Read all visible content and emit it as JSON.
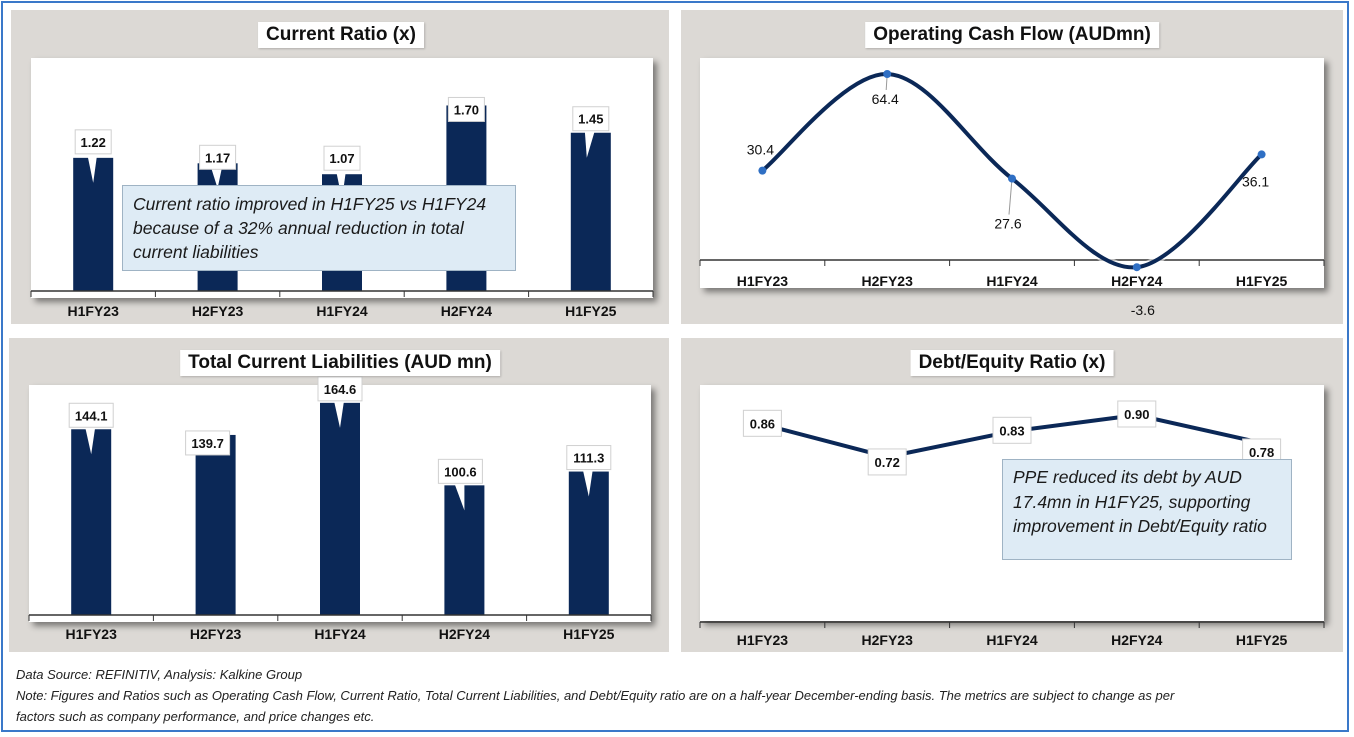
{
  "chart_data": [
    {
      "id": "current_ratio",
      "type": "bar",
      "title": "Current Ratio (x)",
      "categories": [
        "H1FY23",
        "H2FY23",
        "H1FY24",
        "H2FY24",
        "H1FY25"
      ],
      "values": [
        1.22,
        1.17,
        1.07,
        1.7,
        1.45
      ],
      "labels": [
        "1.22",
        "1.17",
        "1.07",
        "1.70",
        "1.45"
      ],
      "ylim": [
        0,
        1.75
      ],
      "xlabel": "",
      "ylabel": "",
      "grid": false,
      "color": "#0b2857",
      "annotation": "Current ratio improved in H1FY25 vs H1FY24 because of a 32% annual reduction in total current liabilities"
    },
    {
      "id": "operating_cash_flow",
      "type": "line",
      "title": "Operating Cash Flow (AUDmn)",
      "categories": [
        "H1FY23",
        "H2FY23",
        "H1FY24",
        "H2FY24",
        "H1FY25"
      ],
      "values": [
        30.4,
        64.4,
        27.6,
        -3.6,
        36.1
      ],
      "labels": [
        "30.4",
        "64.4",
        "27.6",
        "-3.6",
        "36.1"
      ],
      "ylim": [
        -3.6,
        68
      ],
      "smooth": true,
      "grid": false,
      "color": "#0b2857",
      "marker_color": "#2f6fc4"
    },
    {
      "id": "total_current_liabilities",
      "type": "bar",
      "title": "Total Current Liabilities (AUD mn)",
      "categories": [
        "H1FY23",
        "H2FY23",
        "H1FY24",
        "H2FY24",
        "H1FY25"
      ],
      "values": [
        144.1,
        139.7,
        164.6,
        100.6,
        111.3
      ],
      "labels": [
        "144.1",
        "139.7",
        "164.6",
        "100.6",
        "111.3"
      ],
      "ylim": [
        0,
        180
      ],
      "grid": false,
      "color": "#0b2857"
    },
    {
      "id": "debt_equity_ratio",
      "type": "line",
      "title": "Debt/Equity Ratio (x)",
      "categories": [
        "H1FY23",
        "H2FY23",
        "H1FY24",
        "H2FY24",
        "H1FY25"
      ],
      "values": [
        0.86,
        0.72,
        0.83,
        0.9,
        0.78
      ],
      "labels": [
        "0.86",
        "0.72",
        "0.83",
        "0.90",
        "0.78"
      ],
      "ylim": [
        0,
        1.0
      ],
      "grid": false,
      "color": "#0b2857",
      "annotation": "PPE reduced its debt by AUD 17.4mn in H1FY25, supporting improvement in Debt/Equity ratio"
    }
  ],
  "footer": {
    "source": "Data Source: REFINITIV, Analysis: Kalkine Group",
    "note_line1": "Note: Figures and Ratios such as Operating Cash Flow, Current Ratio, Total Current Liabilities, and Debt/Equity ratio  are on a half-year December-ending basis. The metrics are subject to change as per",
    "note_line2": "factors such as company performance, and price changes etc."
  }
}
